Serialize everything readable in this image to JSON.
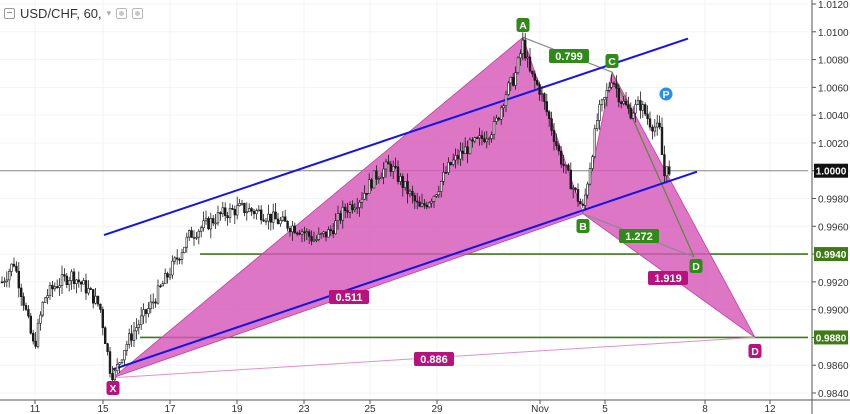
{
  "header": {
    "symbol": "USD/CHF",
    "interval": "60",
    "collapse_icon": "collapse-icon",
    "menu_icon": "chevron-down-icon",
    "settings_icon": "gear-icon",
    "visibility_icon": "eye-icon"
  },
  "colors": {
    "pattern_fill": "#d658b7",
    "pattern_edge": "#c040a0",
    "channel": "#1414e6",
    "level": "#3f7a16",
    "label_green": "#2f8a1a",
    "label_magenta": "#b8127f",
    "p_marker": "#2a8ef0"
  },
  "chart_data": {
    "type": "candlestick",
    "symbol": "USD/CHF",
    "timeframe": "60",
    "x_ticks": [
      "11",
      "15",
      "17",
      "19",
      "23",
      "25",
      "29",
      "Nov",
      "5",
      "8",
      "12"
    ],
    "y_ticks": [
      "1.0120",
      "1.0100",
      "1.0080",
      "1.0060",
      "1.0040",
      "1.0020",
      "1.0000",
      "0.9980",
      "0.9960",
      "0.9940",
      "0.9920",
      "0.9900",
      "0.9880",
      "0.9860",
      "0.9840"
    ],
    "ylim": [
      0.9835,
      1.0124
    ],
    "price_badges": [
      "1.0000",
      "0.9940",
      "0.9880"
    ],
    "levels": [
      1.0,
      0.994,
      0.988
    ],
    "pattern_points": [
      {
        "label": "X",
        "date": "Oct 15",
        "price": 0.9851
      },
      {
        "label": "A",
        "date": "Oct 31",
        "price": 1.0096
      },
      {
        "label": "B",
        "date": "Nov 2",
        "price": 0.9969
      },
      {
        "label": "C",
        "date": "Nov 5",
        "price": 1.0071
      },
      {
        "label": "D",
        "date": "Nov 7",
        "price": 0.9938
      },
      {
        "label": "D",
        "date": "Nov 11",
        "price": 0.988
      },
      {
        "label": "P",
        "date": "Nov 7",
        "price": 1.0057
      }
    ],
    "ratios": [
      "0.799",
      "1.272",
      "0.511",
      "1.919",
      "0.886"
    ]
  }
}
